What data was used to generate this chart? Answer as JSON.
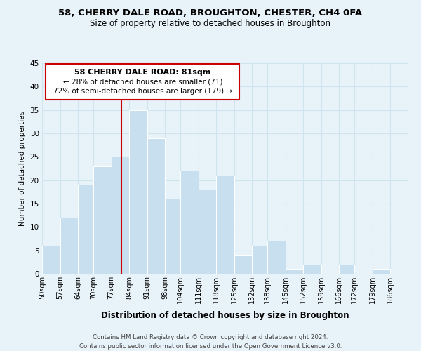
{
  "title": "58, CHERRY DALE ROAD, BROUGHTON, CHESTER, CH4 0FA",
  "subtitle": "Size of property relative to detached houses in Broughton",
  "xlabel": "Distribution of detached houses by size in Broughton",
  "ylabel": "Number of detached properties",
  "bin_labels": [
    "50sqm",
    "57sqm",
    "64sqm",
    "70sqm",
    "77sqm",
    "84sqm",
    "91sqm",
    "98sqm",
    "104sqm",
    "111sqm",
    "118sqm",
    "125sqm",
    "132sqm",
    "138sqm",
    "145sqm",
    "152sqm",
    "159sqm",
    "166sqm",
    "172sqm",
    "179sqm",
    "186sqm"
  ],
  "bin_edges": [
    50,
    57,
    64,
    70,
    77,
    84,
    91,
    98,
    104,
    111,
    118,
    125,
    132,
    138,
    145,
    152,
    159,
    166,
    172,
    179,
    186,
    193
  ],
  "counts": [
    6,
    12,
    19,
    23,
    25,
    35,
    29,
    16,
    22,
    18,
    21,
    4,
    6,
    7,
    1,
    2,
    0,
    2,
    0,
    1,
    0
  ],
  "bar_color": "#c8dff0",
  "bar_edge_color": "#ffffff",
  "vline_x": 81,
  "vline_color": "#cc0000",
  "ylim": [
    0,
    45
  ],
  "yticks": [
    0,
    5,
    10,
    15,
    20,
    25,
    30,
    35,
    40,
    45
  ],
  "grid_color": "#d0e4f0",
  "annotation_title": "58 CHERRY DALE ROAD: 81sqm",
  "annotation_line1": "← 28% of detached houses are smaller (71)",
  "annotation_line2": "72% of semi-detached houses are larger (179) →",
  "annotation_box_color": "#ffffff",
  "annotation_box_edge": "#cc0000",
  "footer_line1": "Contains HM Land Registry data © Crown copyright and database right 2024.",
  "footer_line2": "Contains public sector information licensed under the Open Government Licence v3.0.",
  "bg_color": "#e8f2f9"
}
